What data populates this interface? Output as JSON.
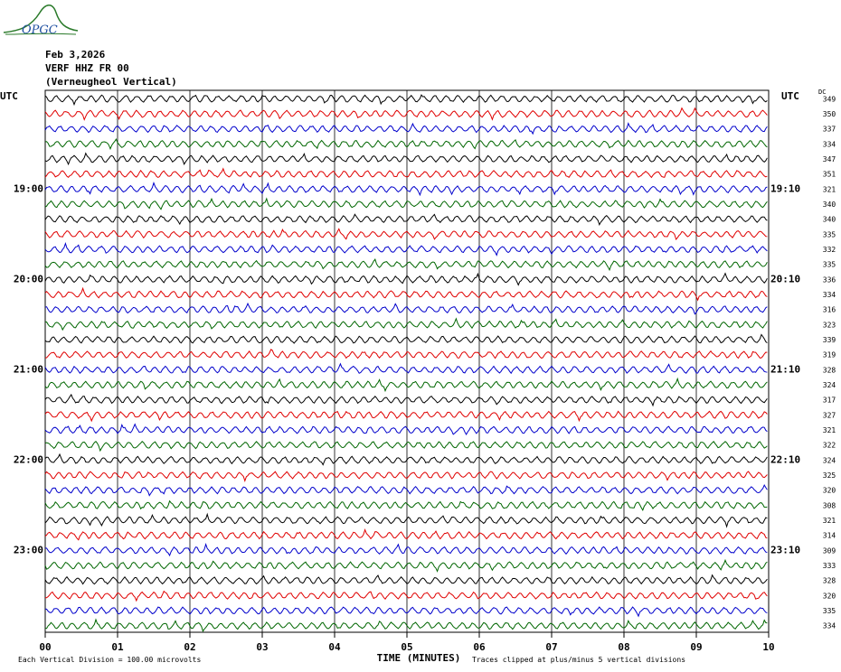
{
  "header": {
    "date": "Feb 3,2026",
    "station": "VERF HHZ FR 00",
    "location": "(Verneugheol Vertical)",
    "logo_text": "OPGC"
  },
  "chart_data": {
    "type": "line",
    "title": "",
    "xlabel": "TIME (MINUTES)",
    "ylabel": "",
    "x_ticks": [
      "00",
      "01",
      "02",
      "03",
      "04",
      "05",
      "06",
      "07",
      "08",
      "09",
      "10"
    ],
    "xlim": [
      0,
      10
    ],
    "left_axis_label": "UTC",
    "right_axis_label": "UTC",
    "right_column_label": "DC",
    "left_time_labels": [
      {
        "row": 6,
        "label": "19:00"
      },
      {
        "row": 12,
        "label": "20:00"
      },
      {
        "row": 18,
        "label": "21:00"
      },
      {
        "row": 24,
        "label": "22:00"
      },
      {
        "row": 30,
        "label": "23:00"
      }
    ],
    "right_time_labels": [
      {
        "row": 6,
        "label": "19:10"
      },
      {
        "row": 12,
        "label": "20:10"
      },
      {
        "row": 18,
        "label": "21:10"
      },
      {
        "row": 24,
        "label": "22:10"
      },
      {
        "row": 30,
        "label": "23:10"
      }
    ],
    "dc_offsets": [
      "349",
      "350",
      "337",
      "334",
      "347",
      "351",
      "321",
      "340",
      "340",
      "335",
      "332",
      "335",
      "336",
      "334",
      "316",
      "323",
      "339",
      "319",
      "328",
      "324",
      "317",
      "327",
      "321",
      "322",
      "324",
      "325",
      "320",
      "308",
      "321",
      "314",
      "309",
      "333",
      "328",
      "320",
      "335",
      "334"
    ],
    "trace_colors": [
      "#000000",
      "#e00000",
      "#0000cc",
      "#006600"
    ],
    "footer_left": "Each Vertical Division =  100.00 microvolts",
    "footer_right": "Traces clipped at plus/minus 5 vertical divisions"
  }
}
